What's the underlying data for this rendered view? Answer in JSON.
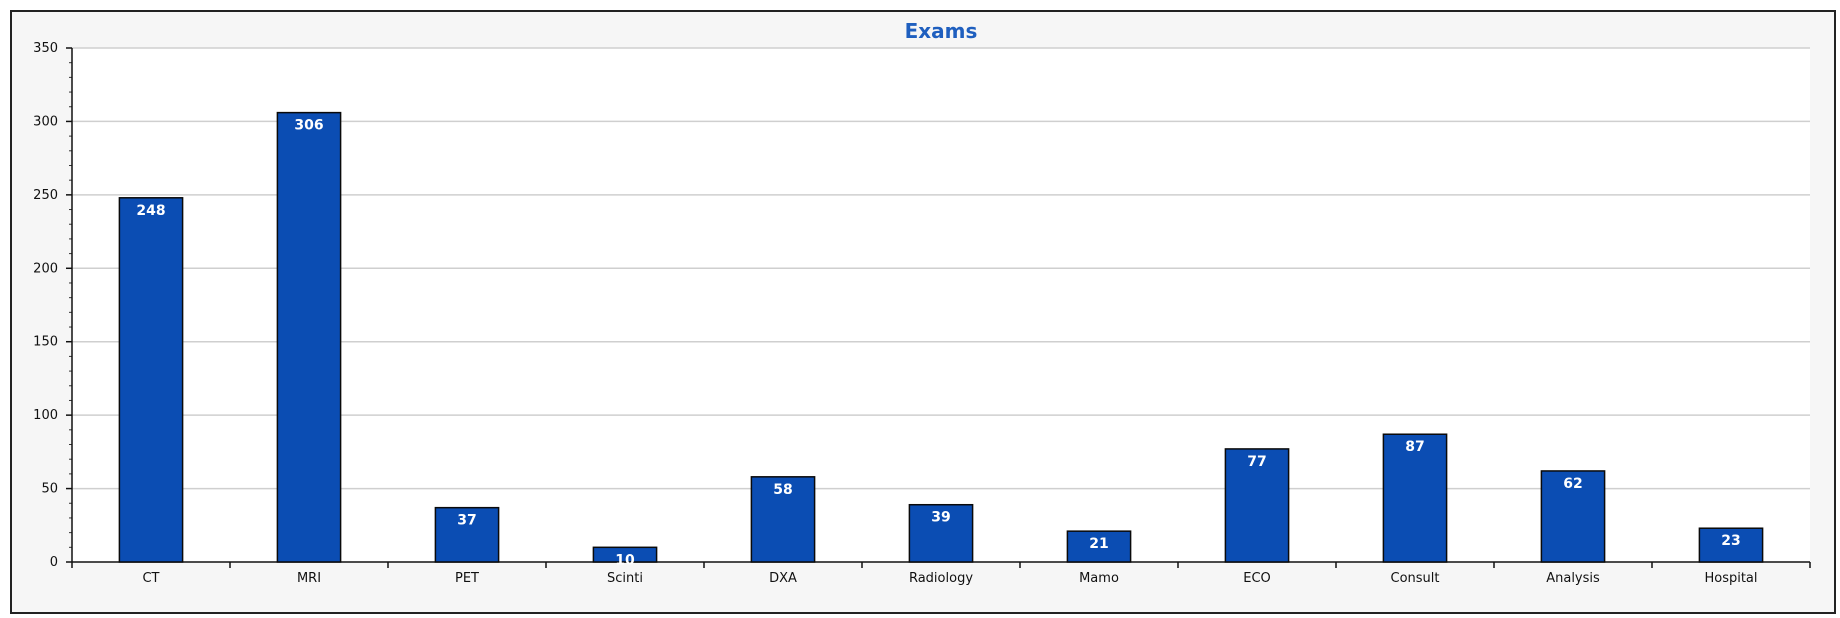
{
  "chart_data": {
    "type": "bar",
    "title": "Exams",
    "xlabel": "",
    "ylabel": "",
    "categories": [
      "CT",
      "MRI",
      "PET",
      "Scinti",
      "DXA",
      "Radiology",
      "Mamo",
      "ECO",
      "Consult",
      "Analysis",
      "Hospital"
    ],
    "values": [
      248,
      306,
      37,
      10,
      58,
      39,
      21,
      77,
      87,
      62,
      23
    ],
    "data_labels": [
      "248",
      "306",
      "37",
      "10",
      "58",
      "39",
      "21",
      "77",
      "87",
      "62",
      "23"
    ],
    "ylim": [
      0,
      350
    ],
    "yticks": [
      0,
      50,
      100,
      150,
      200,
      250,
      300,
      350
    ],
    "grid": true,
    "legend": "none",
    "colors": {
      "bar_fill": "#0b4db3",
      "bar_stroke": "#0a0a0a",
      "title": "#1f5fbf",
      "grid": "#cfcfcf",
      "plot_background": "#ffffff",
      "frame_background": "#f6f6f6"
    }
  }
}
